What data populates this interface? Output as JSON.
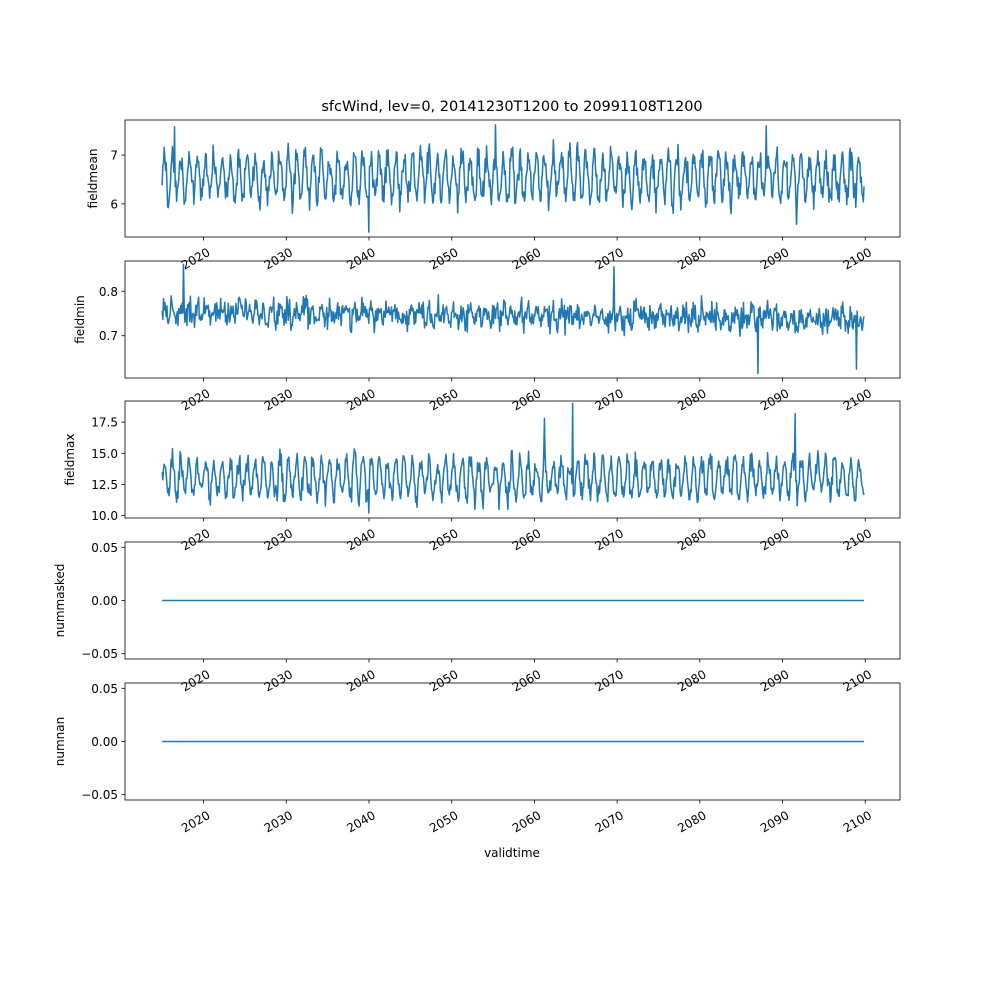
{
  "figure": {
    "title": "sfcWind, lev=0, 20141230T1200 to 20991108T1200",
    "xlabel": "validtime",
    "line_color": "#1f77b4"
  },
  "chart_data": [
    {
      "type": "line",
      "ylabel": "fieldmean",
      "xlim": [
        2010.5,
        2104.2
      ],
      "ylim": [
        5.32,
        7.72
      ],
      "yticks": [
        6,
        7
      ],
      "ytick_labels": [
        "6",
        "7"
      ],
      "xticks": [
        2020,
        2030,
        2040,
        2050,
        2060,
        2070,
        2080,
        2090,
        2100
      ],
      "xtick_labels": [
        "2020",
        "2030",
        "2040",
        "2050",
        "2060",
        "2070",
        "2080",
        "2090",
        "2100"
      ],
      "x_range": [
        2014.99,
        2099.85
      ],
      "base": 6.55,
      "amplitude": 0.42,
      "noise": 0.22,
      "spikes": [
        [
          2016.5,
          7.58
        ],
        [
          2040.0,
          5.42
        ],
        [
          2055.3,
          7.62
        ],
        [
          2088.0,
          7.6
        ],
        [
          2091.7,
          5.58
        ]
      ]
    },
    {
      "type": "line",
      "ylabel": "fieldmin",
      "xlim": [
        2010.5,
        2104.2
      ],
      "ylim": [
        0.605,
        0.868
      ],
      "yticks": [
        0.7,
        0.8
      ],
      "ytick_labels": [
        "0.7",
        "0.8"
      ],
      "xticks": [
        2020,
        2030,
        2040,
        2050,
        2060,
        2070,
        2080,
        2090,
        2100
      ],
      "xtick_labels": [
        "2020",
        "2030",
        "2040",
        "2050",
        "2060",
        "2070",
        "2080",
        "2090",
        "2100"
      ],
      "x_range": [
        2014.99,
        2099.85
      ],
      "base": 0.755,
      "amplitude": 0.012,
      "noise": 0.022,
      "trend": -0.02,
      "spikes": [
        [
          2017.6,
          0.86
        ],
        [
          2069.6,
          0.855
        ],
        [
          2087.0,
          0.615
        ],
        [
          2098.9,
          0.625
        ]
      ]
    },
    {
      "type": "line",
      "ylabel": "fieldmax",
      "xlim": [
        2010.5,
        2104.2
      ],
      "ylim": [
        9.8,
        19.2
      ],
      "yticks": [
        10.0,
        12.5,
        15.0,
        17.5
      ],
      "ytick_labels": [
        "10.0",
        "12.5",
        "15.0",
        "17.5"
      ],
      "xticks": [
        2020,
        2030,
        2040,
        2050,
        2060,
        2070,
        2080,
        2090,
        2100
      ],
      "xtick_labels": [
        "2020",
        "2030",
        "2040",
        "2050",
        "2060",
        "2070",
        "2080",
        "2090",
        "2100"
      ],
      "x_range": [
        2014.99,
        2099.85
      ],
      "base": 13.0,
      "amplitude": 1.4,
      "noise": 0.7,
      "spikes": [
        [
          2064.6,
          19.0
        ],
        [
          2091.5,
          18.2
        ],
        [
          2040.0,
          10.2
        ],
        [
          2056.8,
          10.5
        ],
        [
          2061.2,
          17.8
        ]
      ]
    },
    {
      "type": "line",
      "ylabel": "nummasked",
      "xlim": [
        2010.5,
        2104.2
      ],
      "ylim": [
        -0.055,
        0.055
      ],
      "yticks": [
        -0.05,
        0.0,
        0.05
      ],
      "ytick_labels": [
        "−0.05",
        "0.00",
        "0.05"
      ],
      "xticks": [
        2020,
        2030,
        2040,
        2050,
        2060,
        2070,
        2080,
        2090,
        2100
      ],
      "xtick_labels": [
        "2020",
        "2030",
        "2040",
        "2050",
        "2060",
        "2070",
        "2080",
        "2090",
        "2100"
      ],
      "x": [
        2014.99,
        2099.85
      ],
      "y": [
        0.0,
        0.0
      ]
    },
    {
      "type": "line",
      "ylabel": "numnan",
      "xlim": [
        2010.5,
        2104.2
      ],
      "ylim": [
        -0.055,
        0.055
      ],
      "yticks": [
        -0.05,
        0.0,
        0.05
      ],
      "ytick_labels": [
        "−0.05",
        "0.00",
        "0.05"
      ],
      "xticks": [
        2020,
        2030,
        2040,
        2050,
        2060,
        2070,
        2080,
        2090,
        2100
      ],
      "xtick_labels": [
        "2020",
        "2030",
        "2040",
        "2050",
        "2060",
        "2070",
        "2080",
        "2090",
        "2100"
      ],
      "x": [
        2014.99,
        2099.85
      ],
      "y": [
        0.0,
        0.0
      ]
    }
  ]
}
